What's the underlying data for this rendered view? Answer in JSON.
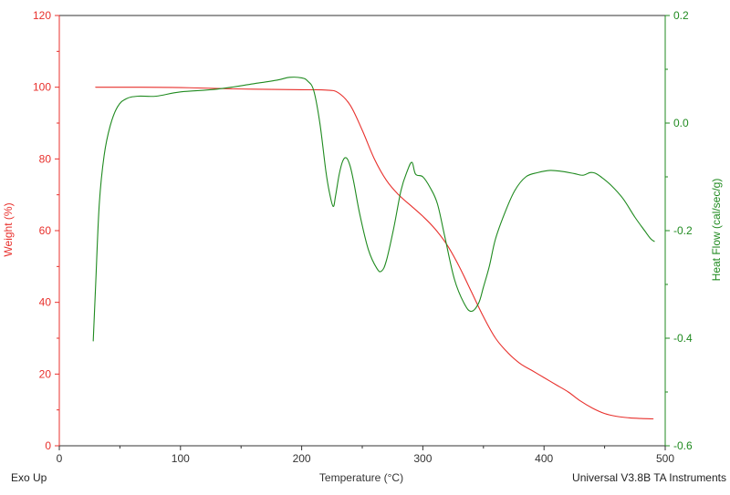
{
  "chart_data": {
    "type": "line",
    "xlabel": "Temperature (°C)",
    "xlim": [
      0,
      500
    ],
    "xticks": [
      0,
      100,
      200,
      300,
      400,
      500
    ],
    "y_left": {
      "label": "Weight (%)",
      "lim": [
        0,
        120
      ],
      "ticks": [
        0,
        20,
        40,
        60,
        80,
        100,
        120
      ],
      "color": "#e8302c"
    },
    "y_right": {
      "label": "Heat Flow (cal/sec/g)",
      "lim": [
        -0.6,
        0.2
      ],
      "ticks": [
        "-0.6",
        "-0.4",
        "-0.2",
        "0.0",
        "0.2"
      ],
      "tick_values": [
        -0.6,
        -0.4,
        -0.2,
        0.0,
        0.2
      ],
      "color": "#1f8a1f"
    },
    "grid": false,
    "series": [
      {
        "axis": "left",
        "color": "#e8302c",
        "x": [
          30,
          60,
          100,
          150,
          200,
          220,
          230,
          240,
          250,
          260,
          270,
          280,
          290,
          300,
          310,
          320,
          330,
          340,
          350,
          360,
          370,
          380,
          390,
          400,
          410,
          420,
          430,
          440,
          450,
          460,
          470,
          480,
          490
        ],
        "y": [
          100,
          100,
          99.9,
          99.5,
          99.3,
          99.2,
          98.5,
          95,
          88,
          80,
          74,
          70,
          67,
          64,
          60.5,
          56,
          50,
          43,
          36,
          30,
          26,
          23,
          21,
          19,
          17,
          15,
          12.5,
          10.5,
          9,
          8.2,
          7.8,
          7.6,
          7.5
        ]
      },
      {
        "axis": "right",
        "color": "#1f8a1f",
        "x": [
          28,
          30,
          33,
          37,
          42,
          48,
          55,
          65,
          80,
          100,
          130,
          160,
          180,
          190,
          200,
          205,
          210,
          215,
          220,
          223,
          226,
          228,
          231,
          234,
          237,
          240,
          243,
          248,
          255,
          262,
          266,
          270,
          276,
          282,
          287,
          291,
          294,
          300,
          306,
          312,
          318,
          326,
          334,
          340,
          346,
          350,
          355,
          360,
          368,
          376,
          385,
          395,
          405,
          415,
          425,
          432,
          438,
          442,
          447,
          455,
          465,
          475,
          483,
          488,
          491
        ],
        "y": [
          -0.405,
          -0.3,
          -0.15,
          -0.06,
          -0.005,
          0.03,
          0.045,
          0.05,
          0.05,
          0.058,
          0.063,
          0.073,
          0.08,
          0.085,
          0.084,
          0.078,
          0.06,
          0.0,
          -0.09,
          -0.13,
          -0.155,
          -0.135,
          -0.095,
          -0.07,
          -0.065,
          -0.08,
          -0.11,
          -0.17,
          -0.235,
          -0.27,
          -0.275,
          -0.255,
          -0.195,
          -0.125,
          -0.09,
          -0.073,
          -0.095,
          -0.1,
          -0.12,
          -0.15,
          -0.21,
          -0.29,
          -0.335,
          -0.35,
          -0.335,
          -0.305,
          -0.265,
          -0.215,
          -0.165,
          -0.125,
          -0.1,
          -0.092,
          -0.088,
          -0.09,
          -0.094,
          -0.097,
          -0.092,
          -0.093,
          -0.1,
          -0.115,
          -0.14,
          -0.175,
          -0.2,
          -0.215,
          -0.22
        ]
      }
    ]
  },
  "footer": {
    "left": "Exo Up",
    "right": "Universal V3.8B TA Instruments"
  }
}
